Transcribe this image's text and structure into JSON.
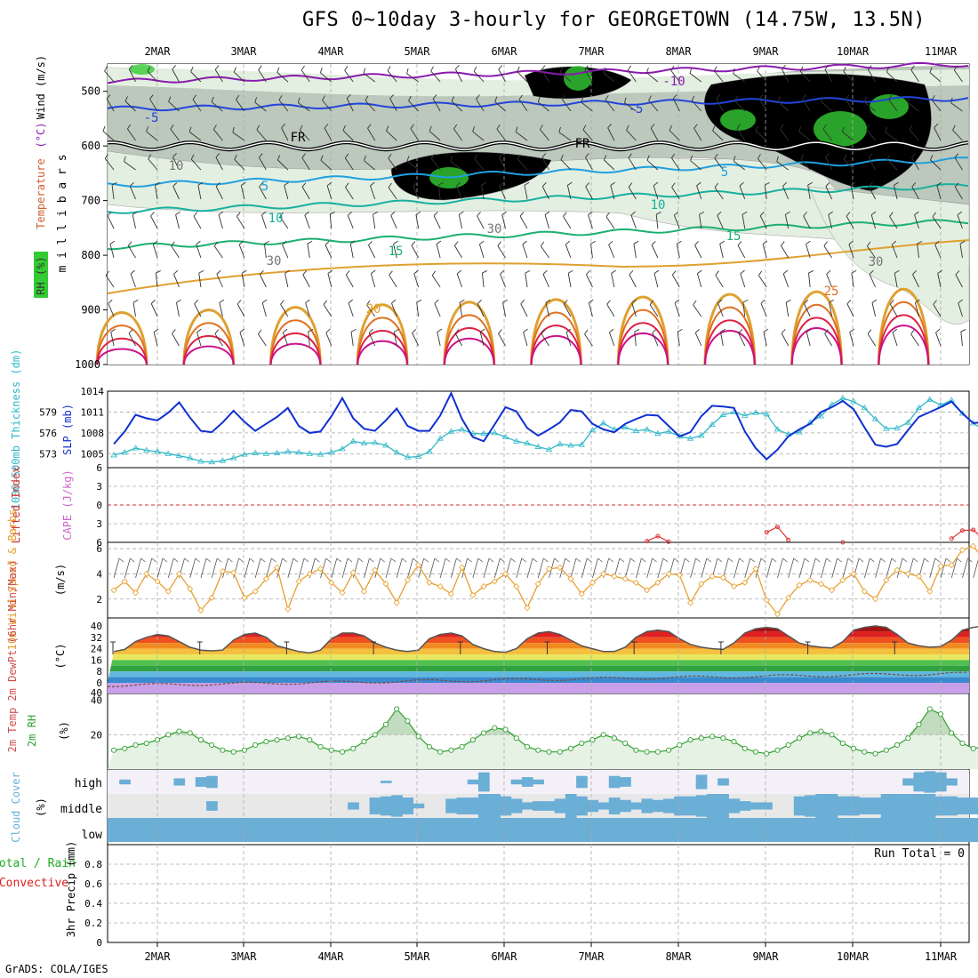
{
  "title": "GFS 0~10day 3-hourly for GEORGETOWN (14.75W, 13.5N)",
  "credit": "GrADS: COLA/IGES",
  "colors": {
    "rh_green_dark": "#33cc33",
    "rh_green_mid": "#a8d8a0",
    "rh_grey": "#bcc8bc",
    "rh_light": "#e3efe0",
    "temp_purple": "#8a1ab0",
    "temp_blue": "#2244dd",
    "temp_cyan": "#1fa0e0",
    "temp_teal": "#17b0a0",
    "temp_green": "#1bb070",
    "temp_gold": "#e0a030",
    "temp_orange": "#e07020",
    "temp_red": "#dd2244",
    "temp_magenta": "#cc1188",
    "slp": "#1030d0",
    "thickness": "#30b8c8",
    "lifted": "#dd3333",
    "cape": "#cc66cc",
    "wind10": "#e8a030",
    "rh2m": "#30a030",
    "cloud": "#6baed6",
    "cloud_bg": "#e8e8e8",
    "cloud_high_bg": "#f4f0f7",
    "grid": "#aaaaaa"
  },
  "chart_data": [
    {
      "type": "contour",
      "name": "upper-air",
      "title": "Temperature (°C) / Wind (m/s) / RH (%)",
      "ylabel": "millibars",
      "label_rh": "RH (%)",
      "label_temp": "Temperature",
      "label_temp_unit": "(°C)",
      "label_wind": "Wind (m/s)",
      "x_ticks": [
        "2MAR",
        "3MAR",
        "4MAR",
        "5MAR",
        "6MAR",
        "7MAR",
        "8MAR",
        "9MAR",
        "10MAR",
        "11MAR"
      ],
      "y_ticks": [
        500,
        600,
        700,
        800,
        900,
        1000
      ],
      "y_tick_labels": [
        "500",
        "600",
        "700",
        "800",
        "900",
        "1000"
      ],
      "ylim": [
        450,
        1000
      ],
      "isotherms": [
        {
          "value": -10,
          "label": "-10",
          "level": 482,
          "color": "temp_purple"
        },
        {
          "value": -5,
          "label": "-5",
          "level": 532,
          "color": "temp_blue"
        },
        {
          "value": 0,
          "label": "FR",
          "level": 600,
          "color": "black"
        },
        {
          "value": 5,
          "label": "5",
          "level": 672,
          "color": "temp_cyan"
        },
        {
          "value": 10,
          "label": "10",
          "level": 720,
          "color": "temp_teal"
        },
        {
          "value": 15,
          "label": "15",
          "level": 785,
          "color": "temp_green"
        }
      ],
      "contour_labels": [
        "-10",
        "-5",
        "FR",
        "FR",
        "-5",
        "5",
        "5",
        "10",
        "10",
        "15",
        "15",
        "20",
        "25",
        "30",
        "30",
        "30",
        "10"
      ]
    },
    {
      "type": "line",
      "name": "slp-thickness",
      "label_left": "1000-500mb Thickness (dm)",
      "label_right": "SLP (mb)",
      "slp_ticks": [
        "1014",
        "1011",
        "1008",
        "1005"
      ],
      "thick_ticks": [
        "579",
        "576",
        "573"
      ],
      "ylim_slp": [
        1003,
        1014
      ],
      "ylim_thick": [
        571,
        582
      ],
      "series": [
        {
          "name": "SLP (mb)",
          "values": [
            1008.6,
            1006.7,
            1006.4,
            1008.2,
            1010.6,
            1010.1,
            1009.8,
            1010.9,
            1012.4,
            1010.2,
            1008.3,
            1008.1,
            1009.5,
            1011.2,
            1009.6,
            1008.3,
            1009.3,
            1010.3,
            1011.6,
            1009.0,
            1008.0,
            1008.2,
            1010.4,
            1013.0,
            1010.1,
            1008.6,
            1008.3,
            1009.8,
            1011.5,
            1009.0,
            1008.3,
            1008.3,
            1010.5,
            1013.7,
            1010.0,
            1007.4,
            1006.8,
            1009.2,
            1011.7,
            1011.1,
            1008.7,
            1007.6,
            1008.5,
            1009.5,
            1011.3,
            1011.1,
            1009.3,
            1008.5,
            1008.1,
            1009.3,
            1010.0,
            1010.6,
            1010.5,
            1009.0,
            1007.5,
            1008.1,
            1010.4,
            1011.9,
            1011.8,
            1011.6,
            1008.2,
            1005.8,
            1004.2,
            1005.6,
            1007.5,
            1008.5,
            1009.3,
            1011.0,
            1011.7,
            1012.6,
            1011.4,
            1008.8,
            1006.3,
            1006.0,
            1006.4,
            1008.4,
            1010.3,
            1011.0,
            1011.7,
            1012.5,
            1010.8,
            1009.4,
            1009.6,
            1011.9,
            1010.5,
            1008.5,
            1006.6,
            1009.0,
            1010.9,
            1010.8,
            1010.3,
            1008.2,
            1005.0,
            1007.4,
            1008.2,
            1009.3,
            1009.9
          ]
        },
        {
          "name": "Thickness (dm)",
          "values": [
            573.5,
            573.0,
            572.8,
            573.2,
            573.8,
            573.5,
            573.3,
            573.0,
            572.7,
            572.4,
            571.9,
            571.8,
            572.0,
            572.4,
            572.9,
            573.1,
            573.0,
            573.1,
            573.3,
            573.2,
            573.0,
            572.9,
            573.2,
            573.7,
            574.8,
            574.5,
            574.6,
            574.2,
            573.2,
            572.5,
            572.6,
            573.3,
            575.2,
            576.2,
            576.5,
            575.9,
            575.9,
            576.0,
            575.4,
            574.8,
            574.5,
            574.0,
            573.6,
            574.4,
            574.2,
            574.3,
            576.4,
            577.4,
            576.5,
            576.8,
            576.3,
            576.5,
            575.9,
            576.2,
            575.5,
            575.2,
            575.6,
            577.2,
            578.6,
            579.0,
            578.5,
            578.9,
            578.7,
            576.5,
            575.8,
            576.1,
            577.5,
            578.4,
            580.1,
            581.0,
            580.5,
            579.6,
            578.0,
            576.6,
            576.7,
            577.5,
            579.6,
            580.8,
            580.0,
            580.7,
            578.8,
            577.4,
            576.4,
            577.1,
            578.6,
            579.5,
            579.7,
            579.9,
            578.9,
            578.4,
            577.5,
            577.1,
            578.0,
            579.5,
            580.2,
            579.8,
            578.0,
            576.7,
            577.2
          ]
        }
      ]
    },
    {
      "type": "line",
      "name": "lifted-cape",
      "label_left": "Lifted Index",
      "label_right": "CAPE (J/kg)",
      "ticks": [
        "-6",
        "-3",
        "0",
        "3",
        "6"
      ],
      "ylim": [
        -6,
        6
      ],
      "series": [
        {
          "name": "Lifted Index",
          "segments": [
            [
              [
                51,
                5.8
              ],
              [
                52,
                5.0
              ],
              [
                53,
                5.9
              ]
            ],
            [
              [
                62,
                4.4
              ],
              [
                63,
                3.5
              ],
              [
                64,
                5.6
              ]
            ],
            [
              [
                69,
                6.0
              ]
            ],
            [
              [
                79,
                5.4
              ],
              [
                80,
                4.1
              ],
              [
                81,
                4.0
              ],
              [
                82,
                5.6
              ]
            ],
            [
              [
                89,
                5.8
              ],
              [
                90,
                5.5
              ],
              [
                91,
                6.0
              ]
            ]
          ]
        }
      ]
    },
    {
      "type": "line",
      "name": "wind10m",
      "label": "10m Wind Speed & Barbs",
      "unit": "(m/s)",
      "ticks": [
        "2",
        "4",
        "6"
      ],
      "ylim": [
        0.5,
        6.5
      ],
      "series": [
        {
          "name": "10m Wind Speed (m/s)",
          "values": [
            4.0,
            2.9,
            2.7,
            3.4,
            2.5,
            4.0,
            3.4,
            2.6,
            4.0,
            2.8,
            1.1,
            2.1,
            4.2,
            4.1,
            2.1,
            2.6,
            3.6,
            4.5,
            1.2,
            3.4,
            4.0,
            4.4,
            3.3,
            2.5,
            4.1,
            2.6,
            4.3,
            3.2,
            1.7,
            3.5,
            4.7,
            3.3,
            3.0,
            2.4,
            4.5,
            2.3,
            3.0,
            3.4,
            4.0,
            3.0,
            1.3,
            3.2,
            4.4,
            4.5,
            3.6,
            2.4,
            3.3,
            4.0,
            3.8,
            3.6,
            3.3,
            2.7,
            3.3,
            4.0,
            3.9,
            1.7,
            3.2,
            3.8,
            3.7,
            3.0,
            3.3,
            4.4,
            1.9,
            0.8,
            2.1,
            3.1,
            3.5,
            3.2,
            2.7,
            3.5,
            4.0,
            2.6,
            2.0,
            3.5,
            4.3,
            4.0,
            3.8,
            2.6,
            4.6,
            4.7,
            5.9,
            6.2,
            5.1,
            4.4,
            3.1,
            2.2,
            1.3,
            3.5,
            4.4,
            4.1,
            3.3,
            2.7,
            4.0,
            4.6,
            4.2,
            4.5,
            3.2
          ]
        }
      ]
    },
    {
      "type": "area",
      "name": "temperature-2m",
      "label": "2m Temp 2m DewPt (6hr Min/Max)",
      "unit": "(°C)",
      "ticks": [
        "40",
        "32",
        "24",
        "16",
        "8",
        "0",
        "-40"
      ],
      "temperature": [
        25,
        23,
        22,
        23.5,
        29,
        32,
        34,
        33,
        29,
        25,
        23,
        22.5,
        23,
        30,
        34,
        35,
        32,
        26,
        24,
        22,
        21,
        23,
        31,
        35,
        35,
        33,
        28,
        25,
        23,
        22,
        23,
        31,
        34,
        35,
        33,
        27,
        24,
        22,
        21.5,
        24,
        31,
        35,
        36,
        34,
        30,
        26,
        24,
        22,
        22,
        25,
        32,
        36,
        37,
        36,
        31,
        27,
        25,
        24,
        23.5,
        28,
        35,
        38,
        39,
        38,
        33,
        28,
        26,
        25,
        24.5,
        29,
        37,
        39,
        40,
        39,
        34,
        28,
        26,
        25,
        25.5,
        30,
        37,
        39,
        40,
        39,
        34,
        29,
        27,
        26,
        26,
        31,
        37,
        39,
        40,
        39,
        36,
        30,
        27
      ]
    },
    {
      "type": "area",
      "name": "rh2m",
      "label": "2m RH",
      "unit": "(%)",
      "ticks": [
        "20",
        "40"
      ],
      "ylim": [
        0,
        44
      ],
      "series": [
        {
          "name": "2m RH (%)",
          "values": [
            14,
            12,
            11,
            12,
            14,
            15,
            17,
            20,
            22,
            21,
            17,
            14,
            11,
            10,
            11,
            14,
            16,
            17,
            18,
            19,
            17,
            13,
            11,
            10,
            12,
            16,
            20,
            26,
            35,
            28,
            19,
            13,
            10,
            11,
            13,
            17,
            21,
            24,
            23,
            18,
            13,
            11,
            10,
            10,
            12,
            15,
            17,
            20,
            18,
            15,
            11,
            10,
            10,
            11,
            14,
            17,
            18,
            19,
            18,
            16,
            12,
            10,
            9,
            11,
            14,
            18,
            21,
            22,
            20,
            15,
            12,
            10,
            9,
            11,
            14,
            18,
            26,
            35,
            32,
            21,
            15,
            12,
            13,
            16,
            19,
            22,
            26,
            34,
            28,
            19,
            15,
            13,
            16,
            20,
            30,
            35,
            35
          ]
        }
      ]
    },
    {
      "type": "bar",
      "name": "cloud-cover",
      "label": "Cloud Cover",
      "unit": "(%)",
      "layers": [
        "high",
        "middle",
        "low"
      ],
      "series": [
        {
          "name": "high",
          "values": [
            0,
            0,
            0,
            20,
            0,
            0,
            0,
            0,
            30,
            0,
            40,
            50,
            0,
            0,
            0,
            0,
            0,
            0,
            0,
            0,
            0,
            0,
            0,
            0,
            0,
            0,
            0,
            10,
            0,
            0,
            0,
            0,
            0,
            0,
            0,
            20,
            80,
            0,
            0,
            20,
            40,
            20,
            0,
            0,
            0,
            50,
            0,
            0,
            50,
            40,
            0,
            0,
            0,
            0,
            0,
            0,
            60,
            0,
            30,
            0,
            0,
            0,
            0,
            0,
            0,
            0,
            0,
            0,
            0,
            0,
            0,
            0,
            0,
            0,
            0,
            30,
            80,
            90,
            80,
            30,
            0,
            0,
            40,
            60,
            50,
            20,
            40,
            60,
            80,
            90,
            100,
            70,
            60,
            60,
            90,
            70,
            50
          ]
        },
        {
          "name": "middle",
          "values": [
            0,
            0,
            0,
            0,
            0,
            0,
            0,
            0,
            0,
            0,
            0,
            40,
            0,
            0,
            0,
            0,
            0,
            0,
            0,
            0,
            0,
            0,
            0,
            0,
            30,
            0,
            70,
            80,
            90,
            70,
            20,
            0,
            0,
            60,
            70,
            70,
            100,
            100,
            80,
            60,
            30,
            40,
            40,
            60,
            100,
            80,
            50,
            30,
            70,
            50,
            30,
            60,
            50,
            60,
            80,
            80,
            90,
            100,
            100,
            60,
            40,
            30,
            30,
            0,
            0,
            80,
            90,
            100,
            100,
            80,
            80,
            70,
            70,
            100,
            100,
            100,
            100,
            100,
            80,
            80,
            70,
            70,
            70,
            90,
            100,
            90,
            100,
            100,
            100,
            100,
            100,
            100,
            100,
            100,
            100,
            100,
            100
          ]
        },
        {
          "name": "low",
          "values": [
            100,
            100,
            100,
            100,
            100,
            100,
            100,
            100,
            100,
            100,
            100,
            100,
            100,
            100,
            100,
            100,
            100,
            100,
            100,
            100,
            100,
            100,
            100,
            100,
            100,
            100,
            100,
            100,
            100,
            100,
            100,
            100,
            100,
            100,
            100,
            100,
            100,
            100,
            100,
            100,
            100,
            100,
            100,
            100,
            100,
            100,
            100,
            100,
            100,
            100,
            100,
            100,
            100,
            100,
            100,
            100,
            100,
            100,
            100,
            100,
            100,
            100,
            100,
            100,
            100,
            100,
            100,
            100,
            100,
            100,
            100,
            100,
            100,
            100,
            100,
            100,
            100,
            100,
            100,
            100,
            100,
            100,
            100,
            100,
            100,
            100,
            100,
            100,
            100,
            100,
            100,
            100,
            100,
            100,
            100,
            100,
            100
          ]
        }
      ]
    },
    {
      "type": "line",
      "name": "precip",
      "label_total": "Total / Rain",
      "label_conv": "Convective",
      "label_axis": "3hr Precip (mm)",
      "run_total": "Run Total = 0",
      "ticks": [
        "0",
        "0.2",
        "0.4",
        "0.6",
        "0.8"
      ],
      "ylim": [
        0,
        1
      ],
      "x_ticks": [
        "2MAR",
        "3MAR",
        "4MAR",
        "5MAR",
        "6MAR",
        "7MAR",
        "8MAR",
        "9MAR",
        "10MAR",
        "11MAR"
      ],
      "series": [
        {
          "name": "Total",
          "values": []
        },
        {
          "name": "Convective",
          "values": []
        }
      ]
    }
  ]
}
